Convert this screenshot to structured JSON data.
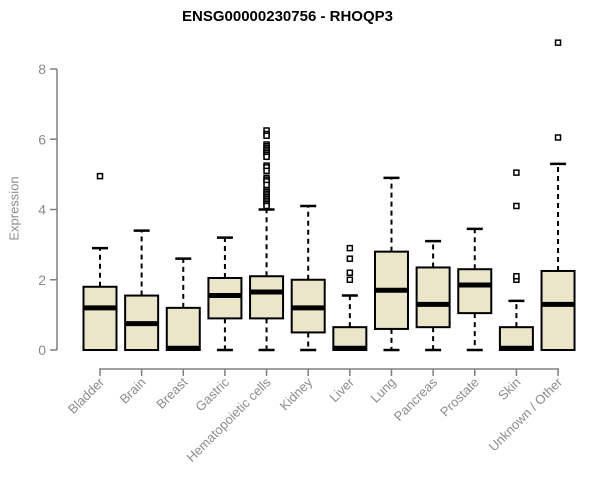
{
  "window": {
    "background": "#ffffff"
  },
  "colors": {
    "box_fill": "#ebe5c9",
    "box_stroke": "#000000",
    "median_color": "#000000",
    "whisker_color": "#000000",
    "axis_color": "#808080",
    "tick_label_color": "#8c8c8c",
    "title_color": "#000000"
  },
  "chart_data": {
    "type": "boxplot",
    "title": "ENSG00000230756 - RHOQP3",
    "xlabel": "",
    "ylabel": "Expression",
    "ylim": [
      0,
      8.8
    ],
    "yticks": [
      0,
      2,
      4,
      6,
      8
    ],
    "grid": false,
    "legend": "none",
    "categories": [
      "Bladder",
      "Brain",
      "Breast",
      "Gastric",
      "Hematopoietic cells",
      "Kidney",
      "Liver",
      "Lung",
      "Pancreas",
      "Prostate",
      "Skin",
      "Unknown / Other"
    ],
    "series": [
      {
        "name": "Bladder",
        "whisker_low": 0,
        "q1": 0,
        "median": 1.2,
        "q3": 1.8,
        "whisker_high": 2.9,
        "outliers": [
          4.95
        ]
      },
      {
        "name": "Brain",
        "whisker_low": 0,
        "q1": 0,
        "median": 0.75,
        "q3": 1.55,
        "whisker_high": 3.4,
        "outliers": []
      },
      {
        "name": "Breast",
        "whisker_low": 0,
        "q1": 0,
        "median": 0.05,
        "q3": 1.2,
        "whisker_high": 2.6,
        "outliers": []
      },
      {
        "name": "Gastric",
        "whisker_low": 0,
        "q1": 0.9,
        "median": 1.55,
        "q3": 2.05,
        "whisker_high": 3.2,
        "outliers": []
      },
      {
        "name": "Hematopoietic cells",
        "whisker_low": 0,
        "q1": 0.9,
        "median": 1.65,
        "q3": 2.1,
        "whisker_high": 4.0,
        "outliers": [
          6.25,
          6.15,
          6.1,
          5.85,
          5.8,
          5.75,
          5.7,
          5.65,
          5.6,
          5.55,
          5.5,
          5.25,
          5.2,
          5.1,
          4.9,
          4.85,
          4.8,
          4.7,
          4.55,
          4.5,
          4.45,
          4.4,
          4.35,
          4.3,
          4.25,
          4.2,
          4.15,
          4.1
        ]
      },
      {
        "name": "Kidney",
        "whisker_low": 0,
        "q1": 0.5,
        "median": 1.2,
        "q3": 2.0,
        "whisker_high": 4.1,
        "outliers": []
      },
      {
        "name": "Liver",
        "whisker_low": 0,
        "q1": 0,
        "median": 0.05,
        "q3": 0.65,
        "whisker_high": 1.55,
        "outliers": [
          2.0,
          2.2,
          2.6,
          2.9
        ]
      },
      {
        "name": "Lung",
        "whisker_low": 0,
        "q1": 0.6,
        "median": 1.7,
        "q3": 2.8,
        "whisker_high": 4.9,
        "outliers": []
      },
      {
        "name": "Pancreas",
        "whisker_low": 0,
        "q1": 0.65,
        "median": 1.3,
        "q3": 2.35,
        "whisker_high": 3.1,
        "outliers": []
      },
      {
        "name": "Prostate",
        "whisker_low": 0,
        "q1": 1.05,
        "median": 1.85,
        "q3": 2.3,
        "whisker_high": 3.45,
        "outliers": []
      },
      {
        "name": "Skin",
        "whisker_low": 0,
        "q1": 0,
        "median": 0.05,
        "q3": 0.65,
        "whisker_high": 1.4,
        "outliers": [
          2.0,
          2.1,
          4.1,
          5.05
        ]
      },
      {
        "name": "Unknown / Other",
        "whisker_low": 0,
        "q1": 0,
        "median": 1.3,
        "q3": 2.25,
        "whisker_high": 5.3,
        "outliers": [
          6.05,
          8.75
        ]
      }
    ]
  }
}
